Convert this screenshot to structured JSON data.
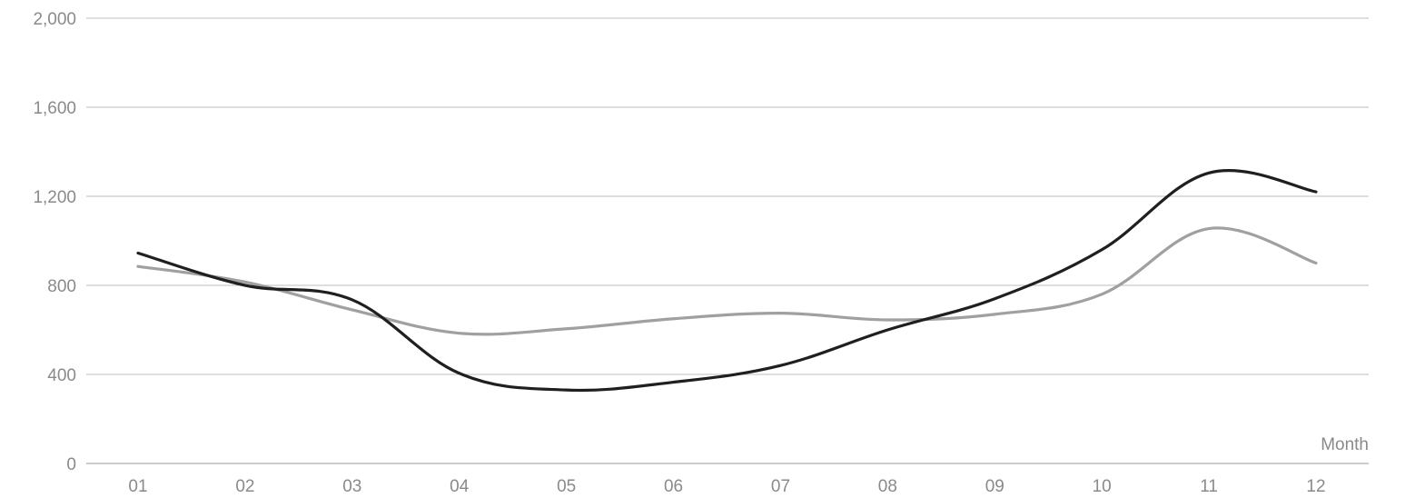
{
  "chart_data": {
    "type": "line",
    "categories": [
      "01",
      "02",
      "03",
      "04",
      "05",
      "06",
      "07",
      "08",
      "09",
      "10",
      "11",
      "12"
    ],
    "series": [
      {
        "color": "#1f1f1f",
        "values": [
          945,
          800,
          735,
          405,
          330,
          365,
          440,
          600,
          740,
          960,
          1305,
          1220
        ]
      },
      {
        "color": "#a0a0a0",
        "values": [
          885,
          815,
          690,
          585,
          605,
          650,
          675,
          645,
          670,
          760,
          1055,
          900
        ]
      }
    ],
    "y_ticks": [
      "0",
      "400",
      "800",
      "1,200",
      "1,600",
      "2,000"
    ],
    "ylim": [
      0,
      2000
    ],
    "xlabel": "Month",
    "ylabel": "",
    "title": "",
    "grid": true,
    "legend": "none"
  }
}
